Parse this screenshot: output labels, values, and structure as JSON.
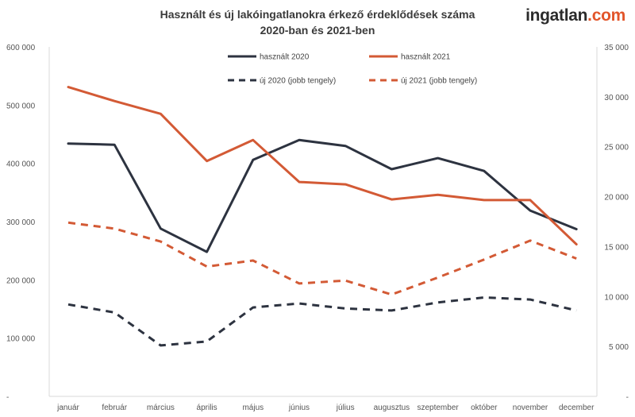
{
  "title_line1": "Használt és új lakóingatlanokra érkező érdeklődések száma",
  "title_line2": "2020-ban és 2021-ben",
  "logo": {
    "part1": "ingatlan",
    "part2": ".com"
  },
  "chart_data": {
    "type": "line",
    "categories": [
      "január",
      "február",
      "március",
      "április",
      "május",
      "június",
      "július",
      "augusztus",
      "szeptember",
      "október",
      "november",
      "december"
    ],
    "left_axis": {
      "ticks": [
        "-",
        "100 000",
        "200 000",
        "300 000",
        "400 000",
        "500 000",
        "600 000"
      ],
      "range": [
        0,
        600000
      ]
    },
    "right_axis": {
      "ticks": [
        "-",
        "5 000",
        "10 000",
        "15 000",
        "20 000",
        "25 000",
        "30 000",
        "35 000"
      ],
      "range": [
        0,
        35000
      ]
    },
    "series": [
      {
        "name": "használt 2020",
        "axis": "left",
        "color": "#2d3340",
        "dash": false,
        "values": [
          434000,
          432000,
          288000,
          248000,
          406000,
          440000,
          430000,
          390000,
          409000,
          387000,
          319000,
          287000
        ]
      },
      {
        "name": "használt 2021",
        "axis": "left",
        "color": "#d35a35",
        "dash": false,
        "values": [
          531000,
          507000,
          485000,
          404000,
          440000,
          368000,
          364000,
          338000,
          346000,
          337000,
          337000,
          261000
        ]
      },
      {
        "name": "új 2020 (jobb tengely)",
        "axis": "right",
        "color": "#2d3340",
        "dash": true,
        "values": [
          9200,
          8400,
          5100,
          5500,
          8900,
          9300,
          8800,
          8600,
          9400,
          9900,
          9700,
          8600
        ]
      },
      {
        "name": "új 2021 (jobb tengely)",
        "axis": "right",
        "color": "#d35a35",
        "dash": true,
        "values": [
          17400,
          16800,
          15500,
          13000,
          13600,
          11300,
          11600,
          10200,
          11900,
          13700,
          15600,
          13800
        ]
      }
    ],
    "grid": false,
    "legend_position": "top-center"
  }
}
